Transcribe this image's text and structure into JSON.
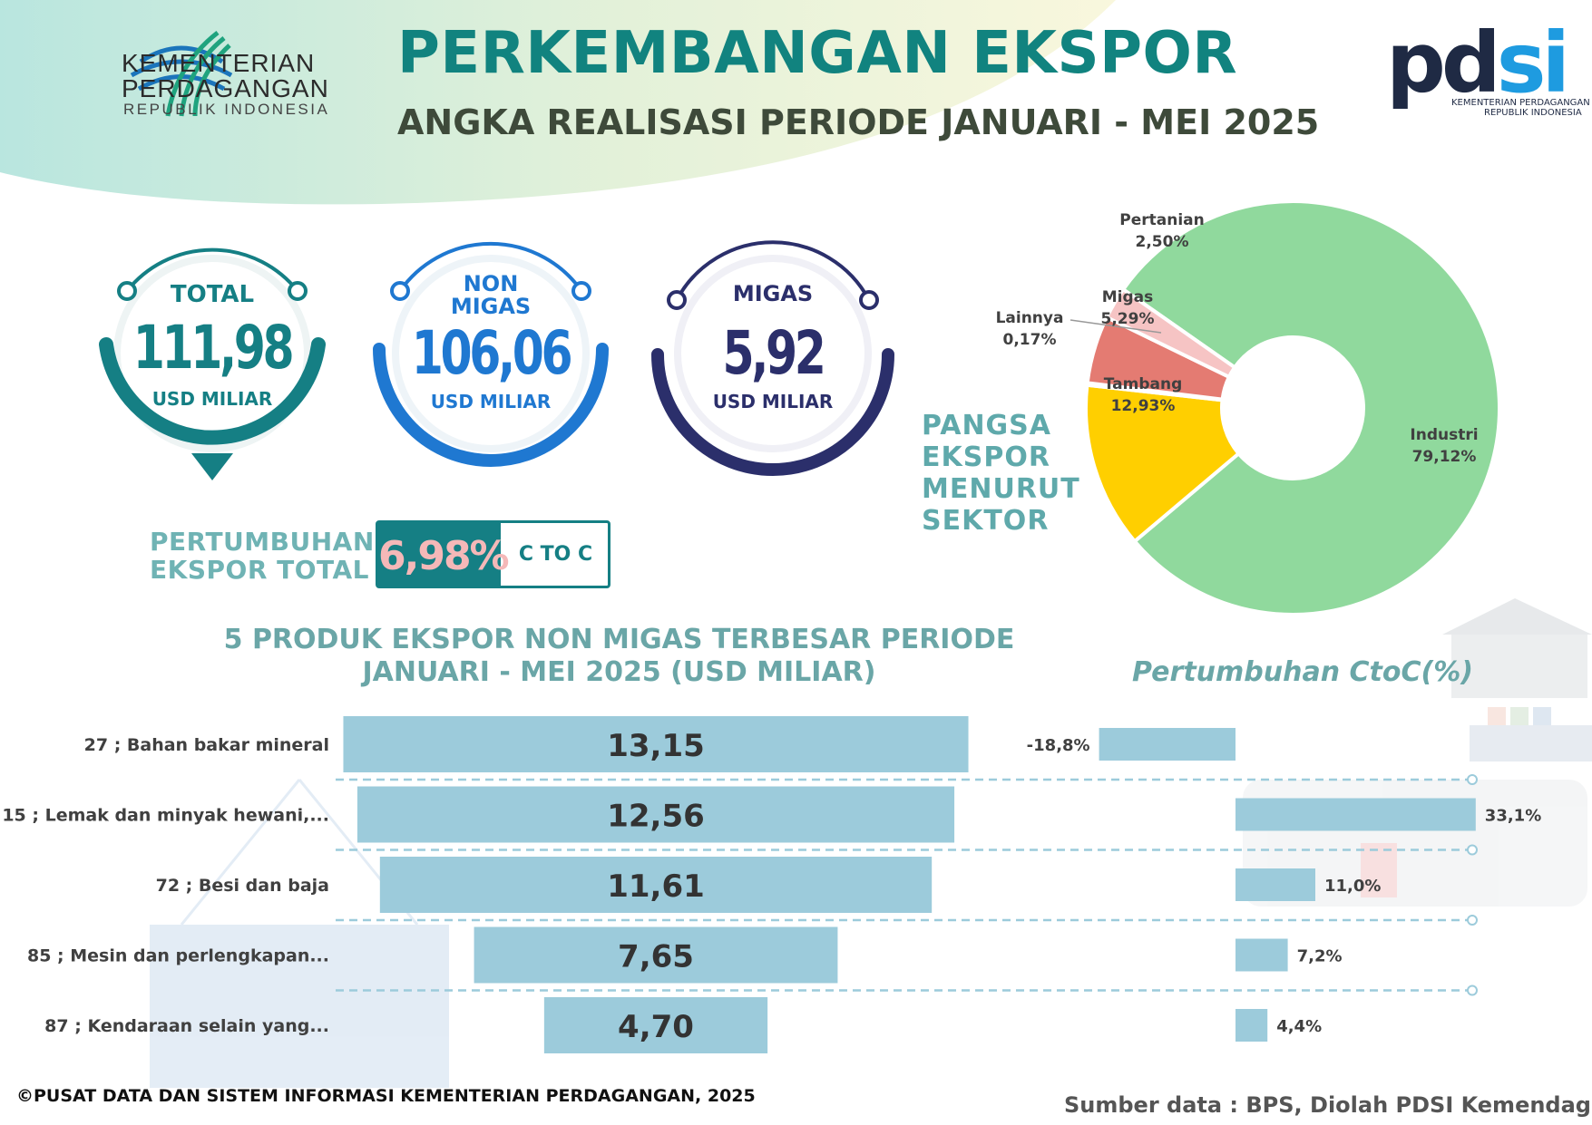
{
  "header": {
    "ministry_line1": "KEMENTERIAN",
    "ministry_line2": "PERDAGANGAN",
    "ministry_line3": "REPUBLIK INDONESIA",
    "title": "PERKEMBANGAN EKSPOR",
    "subtitle": "ANGKA REALISASI PERIODE JANUARI - MEI 2025",
    "pdsi_pd": "pd",
    "pdsi_si": "si",
    "pdsi_sub1": "KEMENTERIAN PERDAGANGAN",
    "pdsi_sub2": "REPUBLIK INDONESIA"
  },
  "kpis": [
    {
      "label": "TOTAL",
      "value": "111,98",
      "unit": "USD MILIAR",
      "color": "#157f84"
    },
    {
      "label_line1": "NON",
      "label_line2": "MIGAS",
      "value": "106,06",
      "unit": "USD MILIAR",
      "color": "#1f78d1"
    },
    {
      "label": "MIGAS",
      "value": "5,92",
      "unit": "USD MILIAR",
      "color": "#2b2f6b"
    }
  ],
  "growth": {
    "label_line1": "PERTUMBUHAN",
    "label_line2": "EKSPOR TOTAL",
    "value": "6,98%",
    "type": "C TO C"
  },
  "pangsa": {
    "line1": "PANGSA",
    "line2": "EKSPOR",
    "line3": "MENURUT",
    "line4": "SEKTOR"
  },
  "bar_title_line1": "5 PRODUK EKSPOR NON MIGAS TERBESAR  PERIODE",
  "bar_title_line2": "JANUARI - MEI 2025 (USD MILIAR)",
  "growth_title": "Pertumbuhan CtoC(%)",
  "footer": {
    "copyright": "©PUSAT DATA DAN SISTEM INFORMASI KEMENTERIAN PERDAGANGAN, 2025",
    "source": "Sumber data : BPS, Diolah PDSI Kemendag"
  },
  "colors": {
    "teal": "#157f84",
    "blue": "#1f78d1",
    "navy": "#2b2f6b",
    "bar": "#9ccbdb",
    "industri": "#90d99d",
    "tambang": "#ffcf00",
    "migas": "#e47b72",
    "pertanian": "#f6c4c4",
    "lainnya": "#999999"
  },
  "chart_data": [
    {
      "type": "pie",
      "title": "PANGSA EKSPOR MENURUT SEKTOR",
      "categories": [
        "Industri",
        "Tambang",
        "Lainnya",
        "Migas",
        "Pertanian"
      ],
      "values": [
        79.12,
        12.93,
        0.17,
        5.29,
        2.5
      ],
      "value_labels": [
        "79,12%",
        "12,93%",
        "0,17%",
        "5,29%",
        "2,50%"
      ]
    },
    {
      "type": "bar",
      "title": "5 PRODUK EKSPOR NON MIGAS TERBESAR  PERIODE JANUARI - MEI 2025 (USD MILIAR)",
      "categories": [
        "27 ; Bahan bakar mineral",
        "15 ; Lemak dan minyak hewani,...",
        "72 ; Besi dan baja",
        "85 ; Mesin dan perlengkapan...",
        "87 ; Kendaraan selain yang..."
      ],
      "values": [
        13.15,
        12.56,
        11.61,
        7.65,
        4.7
      ],
      "value_labels": [
        "13,15",
        "12,56",
        "11,61",
        "7,65",
        "4,70"
      ]
    },
    {
      "type": "bar",
      "title": "Pertumbuhan CtoC(%)",
      "categories": [
        "27 ; Bahan bakar mineral",
        "15 ; Lemak dan minyak hewani,...",
        "72 ; Besi dan baja",
        "85 ; Mesin dan perlengkapan...",
        "87 ; Kendaraan selain yang..."
      ],
      "values": [
        -18.8,
        33.1,
        11.0,
        7.2,
        4.4
      ],
      "value_labels": [
        "-18,8%",
        "33,1%",
        "11,0%",
        "7,2%",
        "4,4%"
      ]
    }
  ]
}
